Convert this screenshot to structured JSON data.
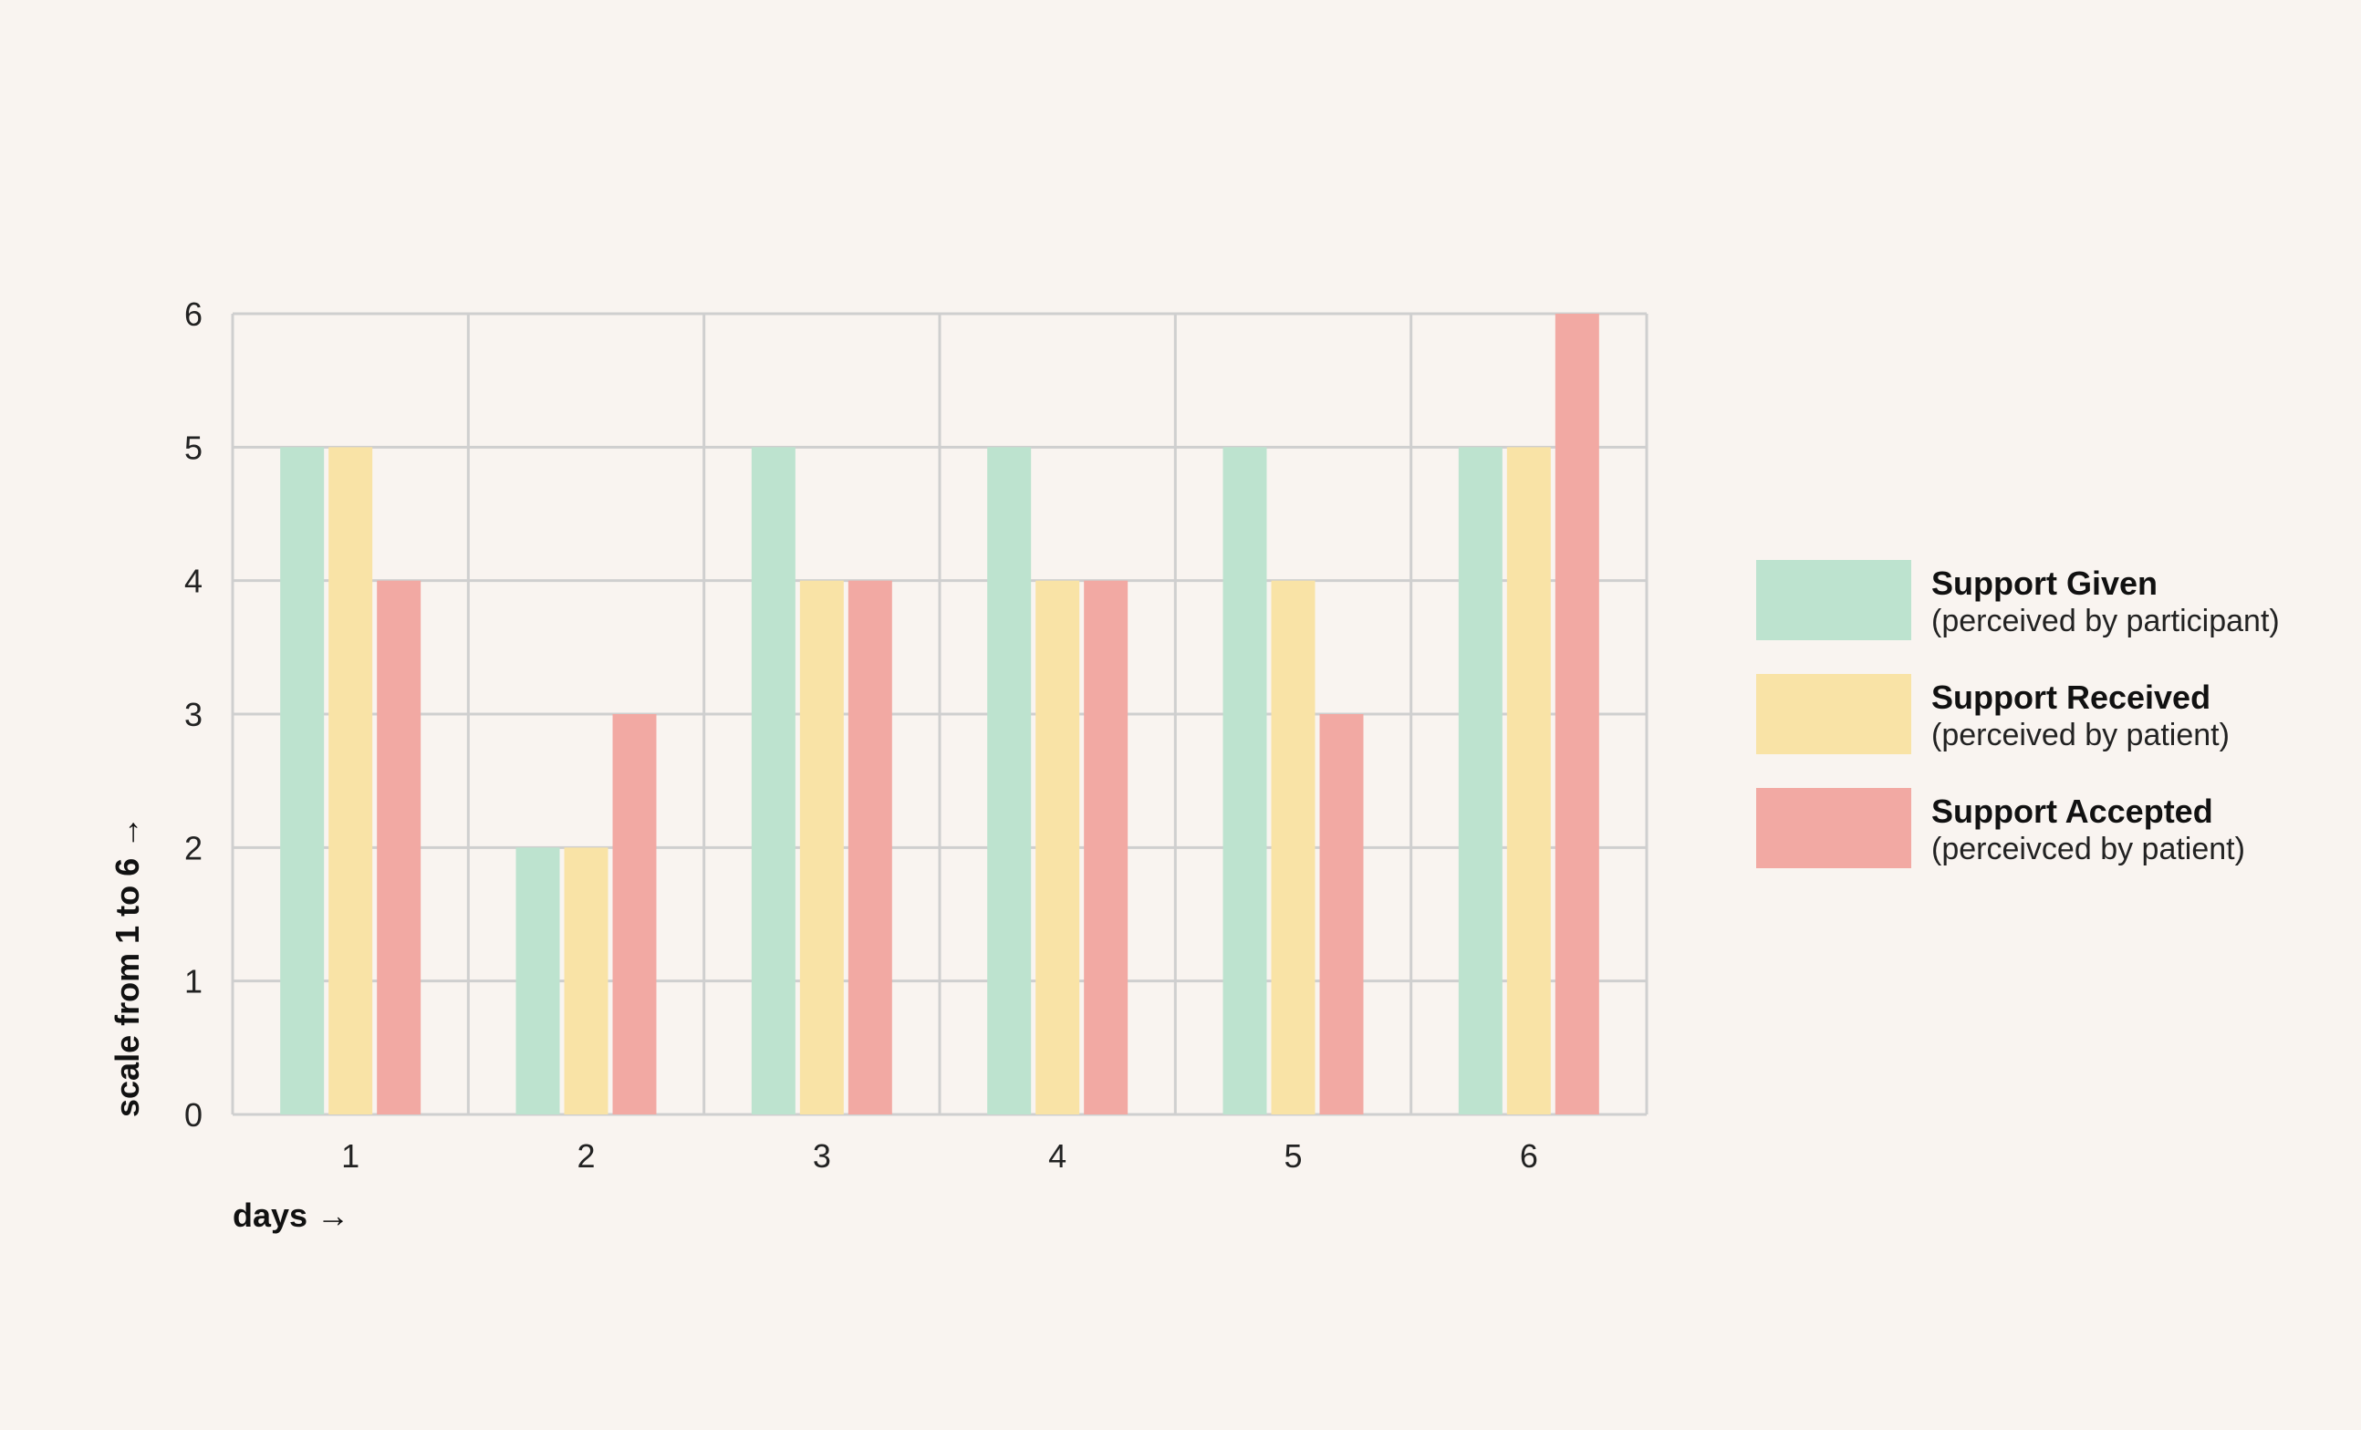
{
  "chart_data": {
    "type": "bar",
    "categories": [
      "1",
      "2",
      "3",
      "4",
      "5",
      "6"
    ],
    "series": [
      {
        "name": "Support Given",
        "subtitle": "(perceived by participant)",
        "color": "#bde3cf",
        "values": [
          5,
          2,
          5,
          5,
          5,
          5
        ]
      },
      {
        "name": "Support Received",
        "subtitle": "(perceived by patient)",
        "color": "#f9e3a6",
        "values": [
          5,
          2,
          4,
          4,
          4,
          5
        ]
      },
      {
        "name": "Support Accepted",
        "subtitle": "(perceivced by patient)",
        "color": "#f2a9a3",
        "values": [
          4,
          3,
          4,
          4,
          3,
          6
        ]
      }
    ],
    "ylim": [
      0,
      6
    ],
    "yticks": [
      "0",
      "1",
      "2",
      "3",
      "4",
      "5",
      "6"
    ],
    "xlabel": "days →",
    "ylabel": "scale from 1 to 6 →",
    "grid": true,
    "legend_position": "right"
  }
}
